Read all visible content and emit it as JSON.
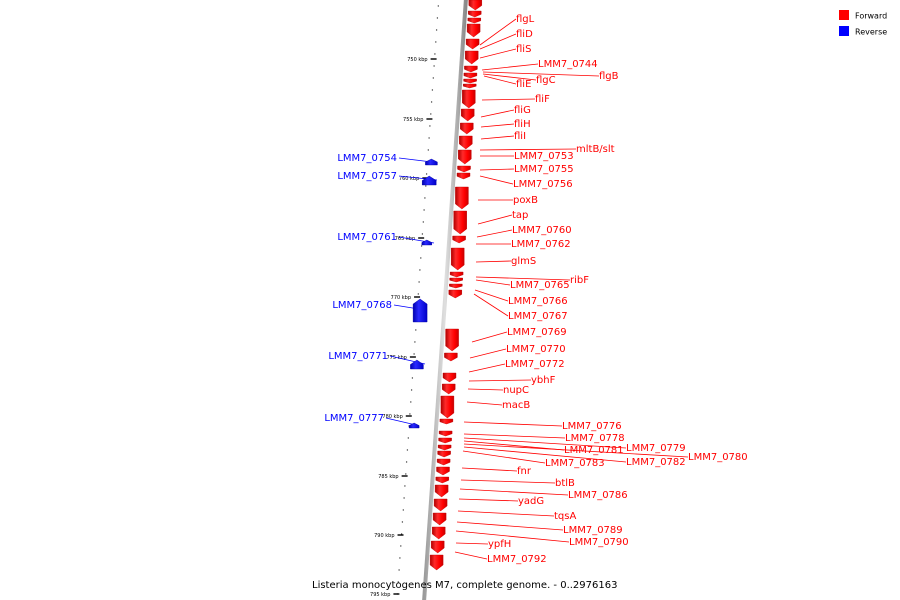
{
  "caption": "Listeria monocytogenes M7, complete genome. - 0..2976163",
  "legend": {
    "forward": {
      "label": "Forward",
      "color": "#ff0000"
    },
    "reverse": {
      "label": "Reverse",
      "color": "#0000ff"
    }
  },
  "ticks": [
    "750 kbp",
    "755 kbp",
    "760 kbp",
    "765 kbp",
    "770 kbp",
    "775 kbp",
    "780 kbp",
    "785 kbp",
    "790 kbp",
    "795 kbp"
  ],
  "forward_genes": [
    "flgL",
    "fliD",
    "fliS",
    "LMM7_0744",
    "flgB",
    "flgC",
    "fliE",
    "fliF",
    "fliG",
    "fliH",
    "fliI",
    "mltB/slt",
    "LMM7_0753",
    "LMM7_0755",
    "LMM7_0756",
    "poxB",
    "tap",
    "LMM7_0760",
    "LMM7_0762",
    "glmS",
    "ribF",
    "LMM7_0765",
    "LMM7_0766",
    "LMM7_0767",
    "LMM7_0769",
    "LMM7_0770",
    "LMM7_0772",
    "ybhF",
    "nupC",
    "macB",
    "LMM7_0776",
    "LMM7_0778",
    "LMM7_0779",
    "LMM7_0781",
    "LMM7_0780",
    "LMM7_0782",
    "LMM7_0783",
    "fnr",
    "btlB",
    "LMM7_0786",
    "yadG",
    "tqsA",
    "LMM7_0789",
    "LMM7_0790",
    "ypfH",
    "LMM7_0792"
  ],
  "reverse_genes": [
    "LMM7_0754",
    "LMM7_0757",
    "LMM7_0761",
    "LMM7_0768",
    "LMM7_0771",
    "LMM7_0777"
  ]
}
